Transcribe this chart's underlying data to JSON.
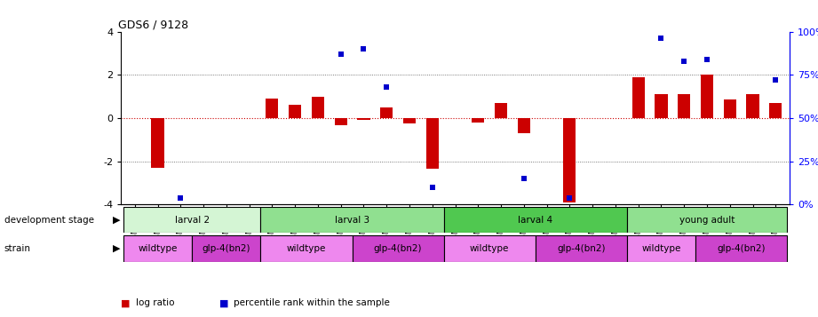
{
  "title": "GDS6 / 9128",
  "samples": [
    "GSM460",
    "GSM461",
    "GSM462",
    "GSM463",
    "GSM464",
    "GSM465",
    "GSM445",
    "GSM449",
    "GSM453",
    "GSM466",
    "GSM447",
    "GSM451",
    "GSM455",
    "GSM459",
    "GSM446",
    "GSM450",
    "GSM454",
    "GSM457",
    "GSM448",
    "GSM452",
    "GSM456",
    "GSM458",
    "GSM438",
    "GSM441",
    "GSM442",
    "GSM439",
    "GSM440",
    "GSM443",
    "GSM444"
  ],
  "log_ratio": [
    0.0,
    -2.3,
    0.0,
    0.0,
    0.0,
    0.0,
    0.9,
    0.6,
    1.0,
    -0.35,
    -0.1,
    0.5,
    -0.25,
    -2.35,
    0.0,
    -0.2,
    0.7,
    -0.7,
    0.0,
    -3.9,
    0.0,
    0.0,
    1.9,
    1.1,
    1.1,
    2.0,
    0.85,
    1.1,
    0.7
  ],
  "percentile_raw": [
    null,
    null,
    3.5,
    null,
    null,
    null,
    null,
    null,
    null,
    87,
    90,
    68,
    null,
    10,
    null,
    null,
    null,
    15,
    null,
    3.5,
    null,
    null,
    null,
    96,
    83,
    84,
    null,
    null,
    72
  ],
  "dev_stage_groups": [
    {
      "label": "larval 2",
      "start": 0,
      "end": 5,
      "color": "#d4f5d4"
    },
    {
      "label": "larval 3",
      "start": 6,
      "end": 13,
      "color": "#90e090"
    },
    {
      "label": "larval 4",
      "start": 14,
      "end": 21,
      "color": "#50c850"
    },
    {
      "label": "young adult",
      "start": 22,
      "end": 28,
      "color": "#90e090"
    }
  ],
  "strain_groups": [
    {
      "label": "wildtype",
      "start": 0,
      "end": 2,
      "color": "#ee88ee"
    },
    {
      "label": "glp-4(bn2)",
      "start": 3,
      "end": 5,
      "color": "#cc44cc"
    },
    {
      "label": "wildtype",
      "start": 6,
      "end": 9,
      "color": "#ee88ee"
    },
    {
      "label": "glp-4(bn2)",
      "start": 10,
      "end": 13,
      "color": "#cc44cc"
    },
    {
      "label": "wildtype",
      "start": 14,
      "end": 17,
      "color": "#ee88ee"
    },
    {
      "label": "glp-4(bn2)",
      "start": 18,
      "end": 21,
      "color": "#cc44cc"
    },
    {
      "label": "wildtype",
      "start": 22,
      "end": 24,
      "color": "#ee88ee"
    },
    {
      "label": "glp-4(bn2)",
      "start": 25,
      "end": 28,
      "color": "#cc44cc"
    }
  ],
  "ylim": [
    -4,
    4
  ],
  "bar_color": "#cc0000",
  "dot_color": "#0000cc",
  "zero_line_color": "#cc0000",
  "background_color": "#ffffff"
}
